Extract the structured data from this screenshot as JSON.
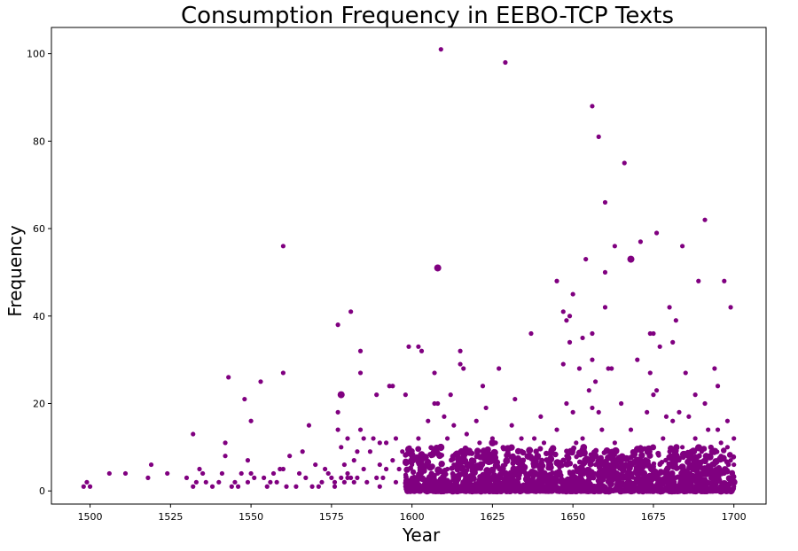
{
  "chart_data": {
    "type": "scatter",
    "title": "Consumption Frequency in EEBO-TCP Texts",
    "xlabel": "Year",
    "ylabel": "Frequency",
    "xlim": [
      1488,
      1710
    ],
    "ylim": [
      -3,
      106
    ],
    "x_ticks": [
      1500,
      1525,
      1550,
      1575,
      1600,
      1625,
      1650,
      1675,
      1700
    ],
    "y_ticks": [
      0,
      20,
      40,
      60,
      80,
      100
    ],
    "grid": false,
    "legend": "none",
    "color": "#800080",
    "points": [
      [
        1498,
        1
      ],
      [
        1499,
        2
      ],
      [
        1500,
        1
      ],
      [
        1506,
        4
      ],
      [
        1511,
        4
      ],
      [
        1518,
        3
      ],
      [
        1519,
        6
      ],
      [
        1524,
        4
      ],
      [
        1530,
        3
      ],
      [
        1532,
        13
      ],
      [
        1532,
        1
      ],
      [
        1533,
        2
      ],
      [
        1534,
        5
      ],
      [
        1535,
        4
      ],
      [
        1536,
        2
      ],
      [
        1538,
        1
      ],
      [
        1540,
        2
      ],
      [
        1541,
        4
      ],
      [
        1542,
        11
      ],
      [
        1542,
        8
      ],
      [
        1543,
        26
      ],
      [
        1544,
        1
      ],
      [
        1545,
        2
      ],
      [
        1546,
        1
      ],
      [
        1547,
        4
      ],
      [
        1548,
        21
      ],
      [
        1549,
        2
      ],
      [
        1549,
        7
      ],
      [
        1550,
        16
      ],
      [
        1550,
        4
      ],
      [
        1551,
        3
      ],
      [
        1553,
        25
      ],
      [
        1554,
        3
      ],
      [
        1555,
        1
      ],
      [
        1556,
        2
      ],
      [
        1557,
        4
      ],
      [
        1558,
        2
      ],
      [
        1559,
        5
      ],
      [
        1560,
        56
      ],
      [
        1560,
        27
      ],
      [
        1560,
        5
      ],
      [
        1561,
        1
      ],
      [
        1562,
        8
      ],
      [
        1564,
        1
      ],
      [
        1565,
        4
      ],
      [
        1566,
        9
      ],
      [
        1567,
        3
      ],
      [
        1568,
        15
      ],
      [
        1569,
        1
      ],
      [
        1570,
        6
      ],
      [
        1571,
        1
      ],
      [
        1572,
        2
      ],
      [
        1573,
        5
      ],
      [
        1574,
        4
      ],
      [
        1575,
        3
      ],
      [
        1576,
        2
      ],
      [
        1576,
        1
      ],
      [
        1577,
        38
      ],
      [
        1577,
        18
      ],
      [
        1577,
        14
      ],
      [
        1578,
        22
      ],
      [
        1578,
        10
      ],
      [
        1578,
        3
      ],
      [
        1579,
        2
      ],
      [
        1579,
        6
      ],
      [
        1580,
        4
      ],
      [
        1580,
        12
      ],
      [
        1580,
        3
      ],
      [
        1581,
        41
      ],
      [
        1581,
        3
      ],
      [
        1582,
        7
      ],
      [
        1582,
        2
      ],
      [
        1583,
        3
      ],
      [
        1583,
        9
      ],
      [
        1584,
        32
      ],
      [
        1584,
        27
      ],
      [
        1584,
        14
      ],
      [
        1585,
        5
      ],
      [
        1585,
        12
      ],
      [
        1586,
        2
      ],
      [
        1587,
        9
      ],
      [
        1588,
        12
      ],
      [
        1589,
        3
      ],
      [
        1589,
        22
      ],
      [
        1590,
        11
      ],
      [
        1590,
        6
      ],
      [
        1590,
        1
      ],
      [
        1591,
        3
      ],
      [
        1592,
        11
      ],
      [
        1592,
        5
      ],
      [
        1593,
        24
      ],
      [
        1594,
        24
      ],
      [
        1594,
        7
      ],
      [
        1595,
        12
      ],
      [
        1595,
        2
      ],
      [
        1596,
        5
      ],
      [
        1597,
        9
      ],
      [
        1598,
        22
      ],
      [
        1598,
        1
      ],
      [
        1599,
        33
      ],
      [
        1599,
        2
      ],
      [
        1600,
        6
      ],
      [
        1600,
        3
      ],
      [
        1601,
        1
      ],
      [
        1602,
        33
      ],
      [
        1602,
        12
      ],
      [
        1603,
        32
      ],
      [
        1603,
        4
      ],
      [
        1604,
        5
      ],
      [
        1605,
        16
      ],
      [
        1605,
        2
      ],
      [
        1606,
        3
      ],
      [
        1606,
        8
      ],
      [
        1607,
        20
      ],
      [
        1607,
        27
      ],
      [
        1607,
        1
      ],
      [
        1608,
        51
      ],
      [
        1608,
        20
      ],
      [
        1608,
        4
      ],
      [
        1609,
        101
      ],
      [
        1609,
        6
      ],
      [
        1609,
        2
      ],
      [
        1610,
        17
      ],
      [
        1610,
        3
      ],
      [
        1611,
        12
      ],
      [
        1611,
        5
      ],
      [
        1612,
        22
      ],
      [
        1612,
        2
      ],
      [
        1613,
        15
      ],
      [
        1613,
        6
      ],
      [
        1614,
        2
      ],
      [
        1615,
        32
      ],
      [
        1615,
        29
      ],
      [
        1615,
        9
      ],
      [
        1616,
        28
      ],
      [
        1616,
        4
      ],
      [
        1617,
        13
      ],
      [
        1618,
        6
      ],
      [
        1619,
        3
      ],
      [
        1620,
        16
      ],
      [
        1620,
        1
      ],
      [
        1621,
        11
      ],
      [
        1622,
        24
      ],
      [
        1622,
        6
      ],
      [
        1623,
        19
      ],
      [
        1623,
        2
      ],
      [
        1624,
        4
      ],
      [
        1625,
        12
      ],
      [
        1625,
        8
      ],
      [
        1626,
        11
      ],
      [
        1627,
        28
      ],
      [
        1627,
        3
      ],
      [
        1628,
        4
      ],
      [
        1629,
        98
      ],
      [
        1629,
        6
      ],
      [
        1630,
        1
      ],
      [
        1631,
        15
      ],
      [
        1632,
        21
      ],
      [
        1632,
        7
      ],
      [
        1633,
        2
      ],
      [
        1634,
        12
      ],
      [
        1635,
        5
      ],
      [
        1636,
        3
      ],
      [
        1637,
        36
      ],
      [
        1637,
        8
      ],
      [
        1638,
        12
      ],
      [
        1638,
        4
      ],
      [
        1639,
        2
      ],
      [
        1640,
        17
      ],
      [
        1640,
        6
      ],
      [
        1641,
        11
      ],
      [
        1641,
        2
      ],
      [
        1642,
        3
      ],
      [
        1643,
        9
      ],
      [
        1644,
        1
      ],
      [
        1645,
        48
      ],
      [
        1645,
        14
      ],
      [
        1646,
        6
      ],
      [
        1646,
        2
      ],
      [
        1647,
        41
      ],
      [
        1647,
        29
      ],
      [
        1648,
        39
      ],
      [
        1648,
        20
      ],
      [
        1648,
        8
      ],
      [
        1649,
        40
      ],
      [
        1649,
        34
      ],
      [
        1649,
        4
      ],
      [
        1650,
        45
      ],
      [
        1650,
        18
      ],
      [
        1650,
        1
      ],
      [
        1651,
        11
      ],
      [
        1651,
        3
      ],
      [
        1652,
        28
      ],
      [
        1652,
        5
      ],
      [
        1653,
        35
      ],
      [
        1653,
        12
      ],
      [
        1653,
        2
      ],
      [
        1654,
        53
      ],
      [
        1654,
        7
      ],
      [
        1655,
        23
      ],
      [
        1655,
        3
      ],
      [
        1656,
        88
      ],
      [
        1656,
        36
      ],
      [
        1656,
        30
      ],
      [
        1656,
        19
      ],
      [
        1657,
        25
      ],
      [
        1657,
        6
      ],
      [
        1658,
        81
      ],
      [
        1658,
        18
      ],
      [
        1658,
        2
      ],
      [
        1659,
        14
      ],
      [
        1659,
        4
      ],
      [
        1660,
        66
      ],
      [
        1660,
        50
      ],
      [
        1660,
        42
      ],
      [
        1660,
        1
      ],
      [
        1661,
        28
      ],
      [
        1661,
        9
      ],
      [
        1662,
        28
      ],
      [
        1662,
        3
      ],
      [
        1663,
        56
      ],
      [
        1663,
        11
      ],
      [
        1664,
        7
      ],
      [
        1664,
        2
      ],
      [
        1665,
        20
      ],
      [
        1666,
        75
      ],
      [
        1666,
        5
      ],
      [
        1667,
        4
      ],
      [
        1668,
        53
      ],
      [
        1668,
        14
      ],
      [
        1669,
        8
      ],
      [
        1670,
        30
      ],
      [
        1670,
        2
      ],
      [
        1671,
        57
      ],
      [
        1671,
        10
      ],
      [
        1672,
        6
      ],
      [
        1673,
        18
      ],
      [
        1673,
        3
      ],
      [
        1674,
        36
      ],
      [
        1674,
        27
      ],
      [
        1674,
        9
      ],
      [
        1675,
        36
      ],
      [
        1675,
        22
      ],
      [
        1676,
        59
      ],
      [
        1676,
        23
      ],
      [
        1677,
        33
      ],
      [
        1677,
        6
      ],
      [
        1678,
        12
      ],
      [
        1678,
        2
      ],
      [
        1679,
        17
      ],
      [
        1679,
        5
      ],
      [
        1680,
        42
      ],
      [
        1680,
        9
      ],
      [
        1681,
        34
      ],
      [
        1681,
        16
      ],
      [
        1682,
        39
      ],
      [
        1682,
        3
      ],
      [
        1683,
        18
      ],
      [
        1683,
        7
      ],
      [
        1684,
        56
      ],
      [
        1684,
        10
      ],
      [
        1685,
        27
      ],
      [
        1685,
        4
      ],
      [
        1686,
        17
      ],
      [
        1686,
        2
      ],
      [
        1687,
        6
      ],
      [
        1688,
        22
      ],
      [
        1688,
        12
      ],
      [
        1689,
        48
      ],
      [
        1689,
        3
      ],
      [
        1690,
        9
      ],
      [
        1691,
        62
      ],
      [
        1691,
        20
      ],
      [
        1691,
        5
      ],
      [
        1692,
        14
      ],
      [
        1692,
        2
      ],
      [
        1693,
        9
      ],
      [
        1694,
        28
      ],
      [
        1694,
        6
      ],
      [
        1695,
        24
      ],
      [
        1695,
        14
      ],
      [
        1695,
        3
      ],
      [
        1696,
        11
      ],
      [
        1696,
        8
      ],
      [
        1697,
        48
      ],
      [
        1697,
        4
      ],
      [
        1698,
        16
      ],
      [
        1698,
        10
      ],
      [
        1699,
        42
      ],
      [
        1699,
        7
      ],
      [
        1699,
        2
      ],
      [
        1700,
        12
      ],
      [
        1700,
        6
      ],
      [
        1700,
        1
      ]
    ],
    "large_points": [
      [
        1578,
        22
      ],
      [
        1608,
        51
      ],
      [
        1668,
        53
      ],
      [
        1625,
        11
      ],
      [
        1640,
        5
      ],
      [
        1645,
        4
      ],
      [
        1660,
        6
      ],
      [
        1655,
        4
      ],
      [
        1663,
        3
      ],
      [
        1672,
        4
      ],
      [
        1685,
        3
      ],
      [
        1695,
        3
      ],
      [
        1700,
        2
      ]
    ]
  }
}
